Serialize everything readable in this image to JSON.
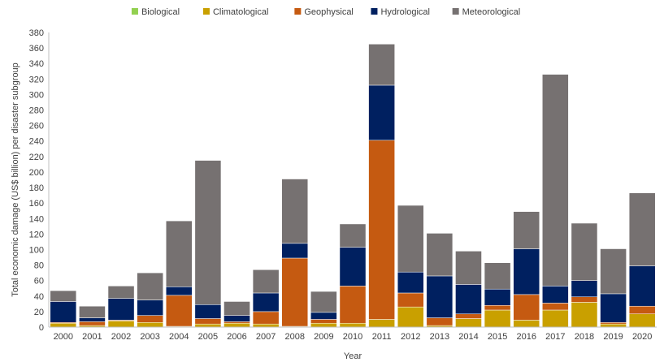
{
  "chart_data": {
    "type": "bar",
    "stacked": true,
    "xlabel": "Year",
    "ylabel": "Total economic damage (US$ billion) per disaster subgroup",
    "ylim": [
      0,
      380
    ],
    "ytick_step": 20,
    "grid": false,
    "legend_position": "top-center",
    "categories": [
      "2000",
      "2001",
      "2002",
      "2003",
      "2004",
      "2005",
      "2006",
      "2007",
      "2008",
      "2009",
      "2010",
      "2011",
      "2012",
      "2013",
      "2014",
      "2015",
      "2016",
      "2017",
      "2018",
      "2019",
      "2020"
    ],
    "series": [
      {
        "name": "Biological",
        "color": "#92d050",
        "values": [
          0,
          0,
          0,
          0,
          0,
          0,
          0,
          0,
          0,
          0,
          0,
          0,
          0,
          0,
          0,
          0,
          0,
          0,
          0,
          0,
          0
        ]
      },
      {
        "name": "Climatological",
        "color": "#c9a000",
        "values": [
          5,
          2,
          8,
          6,
          1,
          4,
          5,
          4,
          1,
          5,
          5,
          10,
          26,
          2,
          11,
          22,
          9,
          22,
          32,
          4,
          17
        ]
      },
      {
        "name": "Geophysical",
        "color": "#c55a11",
        "values": [
          1,
          5,
          1,
          9,
          40,
          7,
          2,
          16,
          88,
          5,
          48,
          231,
          18,
          10,
          6,
          6,
          33,
          9,
          7,
          2,
          10
        ]
      },
      {
        "name": "Hydrological",
        "color": "#002060",
        "values": [
          27,
          5,
          28,
          20,
          11,
          18,
          8,
          24,
          19,
          9,
          50,
          71,
          27,
          54,
          38,
          21,
          59,
          22,
          21,
          37,
          52
        ]
      },
      {
        "name": "Meteorological",
        "color": "#767171",
        "values": [
          14,
          15,
          16,
          35,
          85,
          186,
          18,
          30,
          83,
          27,
          30,
          53,
          86,
          55,
          43,
          34,
          48,
          273,
          74,
          58,
          94
        ]
      }
    ]
  }
}
